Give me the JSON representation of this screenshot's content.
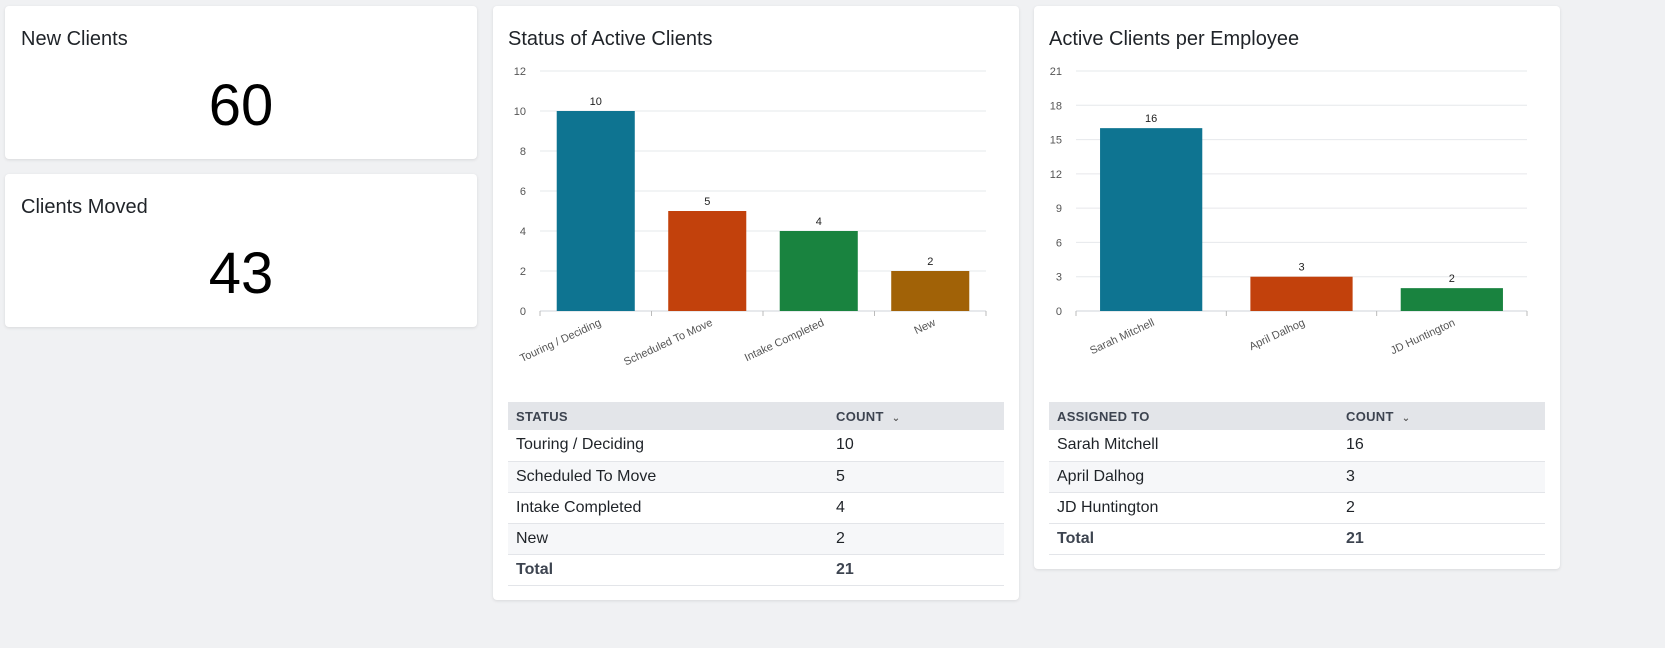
{
  "cards": {
    "new_clients": {
      "title": "New Clients",
      "value": "60"
    },
    "clients_moved": {
      "title": "Clients Moved",
      "value": "43"
    }
  },
  "status_card": {
    "title": "Status of Active Clients",
    "table": {
      "headers": [
        "STATUS",
        "COUNT"
      ],
      "rows": [
        [
          "Touring / Deciding",
          "10"
        ],
        [
          "Scheduled To Move",
          "5"
        ],
        [
          "Intake Completed",
          "4"
        ],
        [
          "New",
          "2"
        ]
      ],
      "total_label": "Total",
      "total_value": "21"
    }
  },
  "employee_card": {
    "title": "Active Clients per Employee",
    "table": {
      "headers": [
        "ASSIGNED TO",
        "COUNT"
      ],
      "rows": [
        [
          "Sarah Mitchell",
          "16"
        ],
        [
          "April Dalhog",
          "3"
        ],
        [
          "JD Huntington",
          "2"
        ]
      ],
      "total_label": "Total",
      "total_value": "21"
    }
  },
  "icons": {
    "sort": "chevron-down-icon"
  },
  "chart_data": [
    {
      "type": "bar",
      "title": "Status of Active Clients",
      "xlabel": "",
      "ylabel": "",
      "categories": [
        "Touring / Deciding",
        "Scheduled To Move",
        "Intake Completed",
        "New"
      ],
      "values": [
        10,
        5,
        4,
        2
      ],
      "colors": [
        "#0e7491",
        "#c2410c",
        "#19833f",
        "#a16207"
      ],
      "ylim": [
        0,
        12
      ],
      "yticks": [
        0,
        2,
        4,
        6,
        8,
        10,
        12
      ],
      "grid": true,
      "data_labels": true
    },
    {
      "type": "bar",
      "title": "Active Clients per Employee",
      "xlabel": "",
      "ylabel": "",
      "categories": [
        "Sarah Mitchell",
        "April Dalhog",
        "JD Huntington"
      ],
      "values": [
        16,
        3,
        2
      ],
      "colors": [
        "#0e7491",
        "#c2410c",
        "#19833f"
      ],
      "ylim": [
        0,
        21
      ],
      "yticks": [
        0,
        3,
        6,
        9,
        12,
        15,
        18,
        21
      ],
      "grid": true,
      "data_labels": true
    }
  ]
}
